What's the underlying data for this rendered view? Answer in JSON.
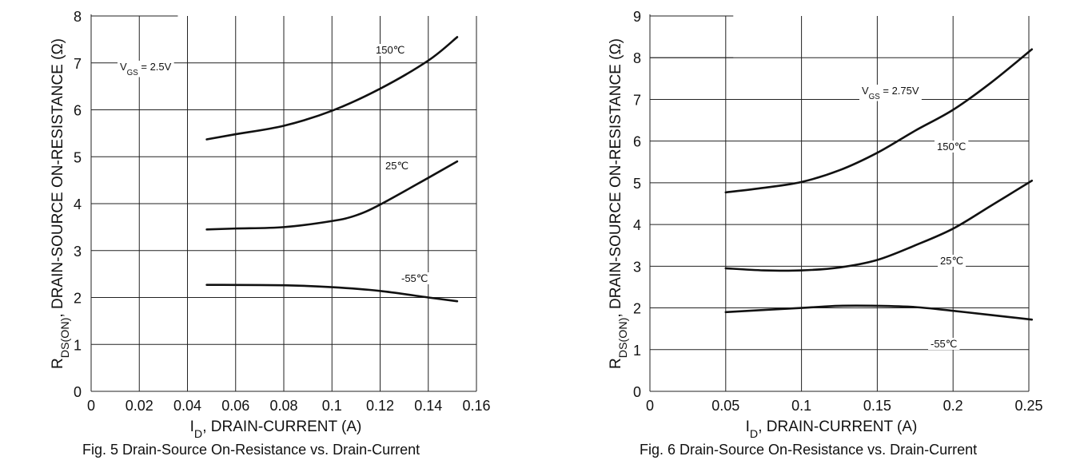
{
  "chart_data": [
    {
      "type": "line",
      "title": "Fig. 5  Drain-Source On-Resistance vs. Drain-Current",
      "xlabel": {
        "main": "I",
        "sub": "D",
        "rest": ", DRAIN-CURRENT (A)"
      },
      "ylabel": {
        "main": "R",
        "sub": "DS(ON)",
        "rest": ", DRAIN-SOURCE ON-RESISTANCE (Ω)"
      },
      "xlim": [
        0,
        0.16
      ],
      "ylim": [
        0,
        8
      ],
      "xticks": [
        "0",
        "0.02",
        "0.04",
        "0.06",
        "0.08",
        "0.1",
        "0.12",
        "0.14",
        "0.16"
      ],
      "yticks": [
        "0",
        "1",
        "2",
        "3",
        "4",
        "5",
        "6",
        "7",
        "8"
      ],
      "grid": true,
      "annotation": {
        "main": "V",
        "sub": "GS",
        "rest": " = 2.5V"
      },
      "series": [
        {
          "name": "150℃",
          "x": [
            0.048,
            0.06,
            0.08,
            0.1,
            0.12,
            0.14,
            0.152
          ],
          "y": [
            5.37,
            5.48,
            5.66,
            5.98,
            6.45,
            7.05,
            7.55
          ]
        },
        {
          "name": "25℃",
          "x": [
            0.048,
            0.06,
            0.08,
            0.1,
            0.11,
            0.12,
            0.14,
            0.152
          ],
          "y": [
            3.45,
            3.47,
            3.5,
            3.63,
            3.75,
            3.98,
            4.55,
            4.9
          ]
        },
        {
          "name": "-55℃",
          "x": [
            0.048,
            0.08,
            0.1,
            0.12,
            0.14,
            0.152
          ],
          "y": [
            2.27,
            2.26,
            2.22,
            2.14,
            2.0,
            1.92
          ]
        }
      ]
    },
    {
      "type": "line",
      "title": "Fig. 6  Drain-Source On-Resistance vs. Drain-Current",
      "xlabel": {
        "main": "I",
        "sub": "D",
        "rest": ", DRAIN-CURRENT (A)"
      },
      "ylabel": {
        "main": "R",
        "sub": "DS(ON)",
        "rest": ", DRAIN-SOURCE ON-RESISTANCE (Ω)"
      },
      "xlim": [
        0,
        0.25
      ],
      "ylim": [
        0,
        9
      ],
      "xticks": [
        "0",
        "0.05",
        "0.1",
        "0.15",
        "0.2",
        "0.25"
      ],
      "yticks": [
        "0",
        "1",
        "2",
        "3",
        "4",
        "5",
        "6",
        "7",
        "8",
        "9"
      ],
      "grid": true,
      "annotation": {
        "main": "V",
        "sub": "GS",
        "rest": " = 2.75V"
      },
      "series": [
        {
          "name": "150℃",
          "x": [
            0.05,
            0.075,
            0.1,
            0.125,
            0.15,
            0.175,
            0.2,
            0.225,
            0.252
          ],
          "y": [
            4.77,
            4.88,
            5.02,
            5.3,
            5.72,
            6.25,
            6.75,
            7.4,
            8.2
          ]
        },
        {
          "name": "25℃",
          "x": [
            0.05,
            0.075,
            0.1,
            0.125,
            0.15,
            0.175,
            0.2,
            0.225,
            0.252
          ],
          "y": [
            2.95,
            2.9,
            2.9,
            2.97,
            3.15,
            3.5,
            3.9,
            4.45,
            5.05
          ]
        },
        {
          "name": "-55℃",
          "x": [
            0.05,
            0.1,
            0.125,
            0.15,
            0.175,
            0.2,
            0.225,
            0.252
          ],
          "y": [
            1.9,
            2.0,
            2.05,
            2.05,
            2.02,
            1.93,
            1.83,
            1.72
          ]
        }
      ]
    }
  ]
}
